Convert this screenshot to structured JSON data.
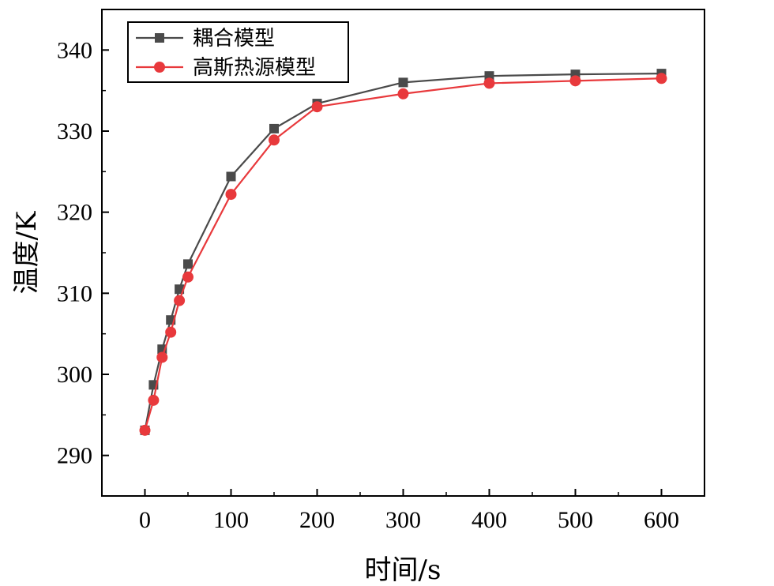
{
  "chart_data": {
    "type": "line",
    "xlabel": "时间/s",
    "ylabel": "温度/K",
    "xlim": [
      -50,
      650
    ],
    "ylim": [
      285,
      345
    ],
    "x_ticks": [
      0,
      100,
      200,
      300,
      400,
      500,
      600
    ],
    "y_ticks": [
      290,
      300,
      310,
      320,
      330,
      340
    ],
    "x_tick_labels": [
      "0",
      "100",
      "200",
      "300",
      "400",
      "500",
      "600"
    ],
    "y_tick_labels": [
      "290",
      "300",
      "310",
      "320",
      "330",
      "340"
    ],
    "grid": false,
    "legend_position": "top-left",
    "series": [
      {
        "name": "耦合模型",
        "marker": "square",
        "color": "#4a4a4a",
        "x": [
          0,
          10,
          20,
          30,
          40,
          50,
          100,
          150,
          200,
          300,
          400,
          500,
          600
        ],
        "y": [
          293.1,
          298.7,
          303.1,
          306.7,
          310.5,
          313.6,
          324.4,
          330.3,
          333.4,
          336.0,
          336.8,
          337.0,
          337.1
        ]
      },
      {
        "name": "高斯热源模型",
        "marker": "circle",
        "color": "#e8393c",
        "x": [
          0,
          10,
          20,
          30,
          40,
          50,
          100,
          150,
          200,
          300,
          400,
          500,
          600
        ],
        "y": [
          293.1,
          296.8,
          302.1,
          305.2,
          309.1,
          312.0,
          322.2,
          328.9,
          333.0,
          334.6,
          335.9,
          336.2,
          336.5
        ]
      }
    ]
  }
}
